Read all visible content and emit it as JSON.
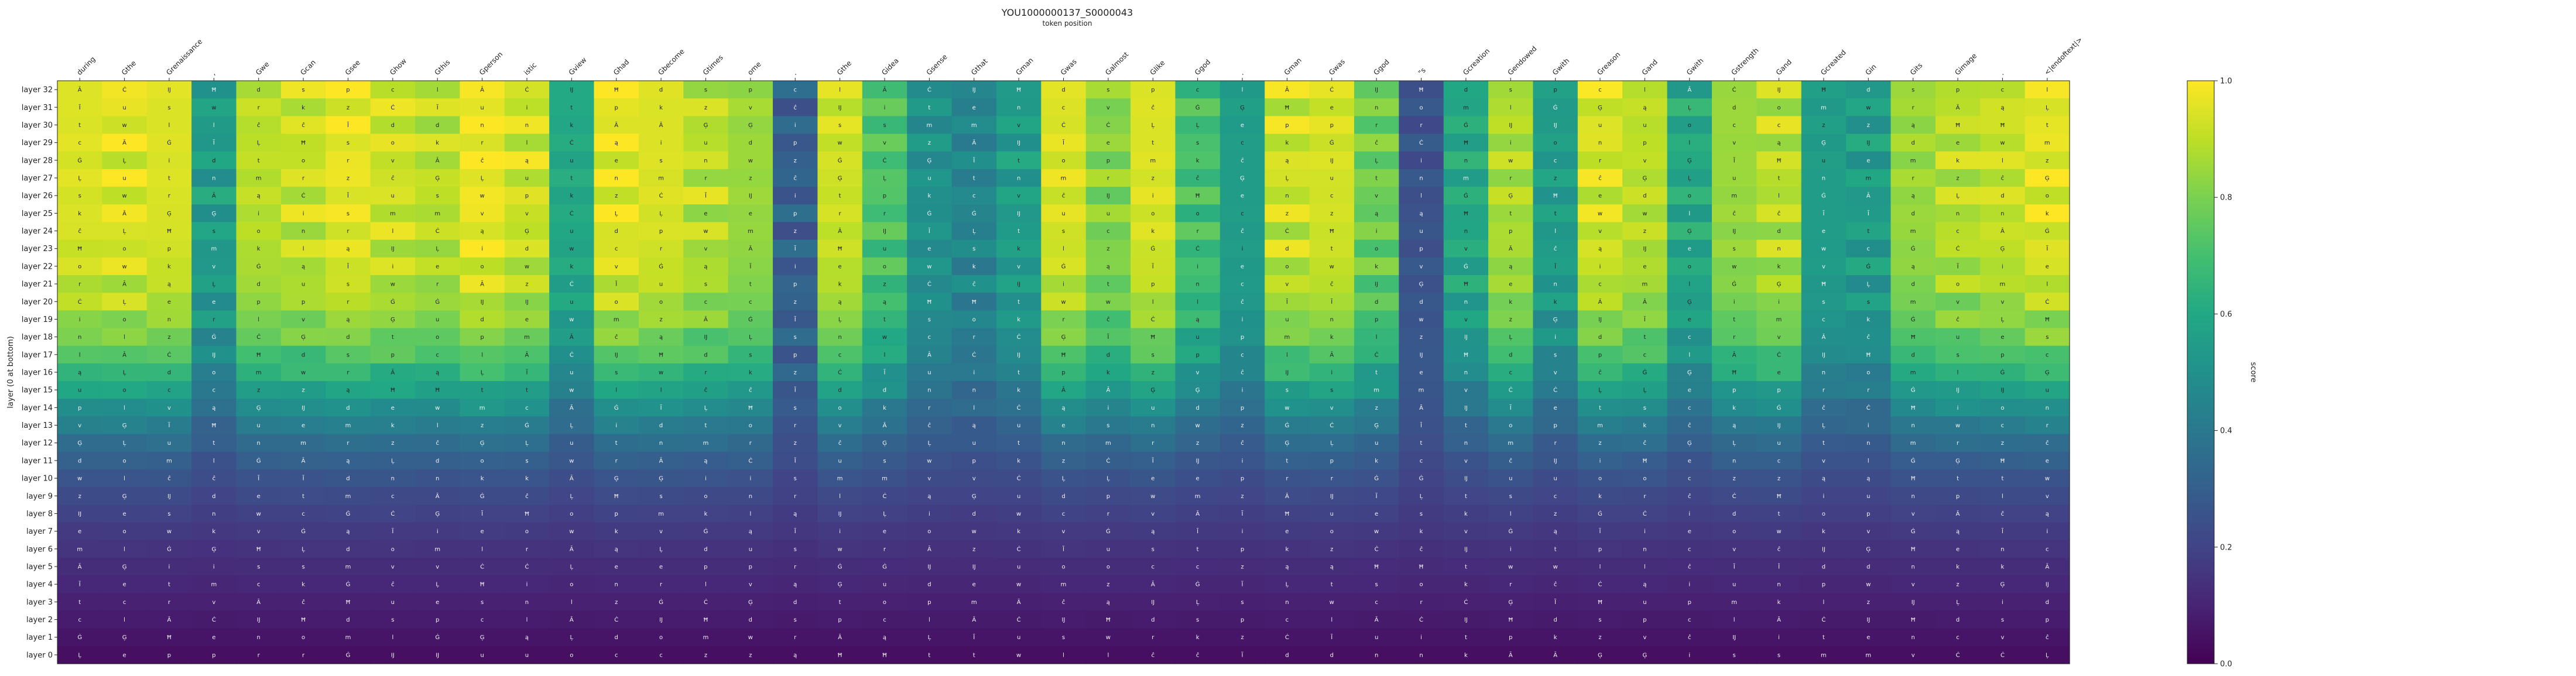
{
  "chart_data": {
    "type": "heatmap",
    "title": "YOU1000000137_S0000043",
    "subtitle": "token position",
    "ylabel": "layer (0 at bottom)",
    "colorbar_label": "score",
    "colorscale": "viridis",
    "value_range": [
      0.0,
      1.0
    ],
    "colorbar_ticks": [
      "0.0",
      "0.2",
      "0.4",
      "0.6",
      "0.8",
      "1.0"
    ],
    "x_tokens": [
      "during",
      "Gthe",
      "Grenaissance",
      ",",
      "Gwe",
      "Gcan",
      "Gsee",
      "Ghow",
      "Gthis",
      "Gperson",
      "istic",
      "Gview",
      "Ghad",
      "Gbecome",
      "Gtimes",
      "ome",
      ".",
      "Gthe",
      "Gidea",
      "Gsense",
      "Gthat",
      "Gman",
      "Gwas",
      "Galmost",
      "Glike",
      "Ggod",
      ".",
      "Gman",
      "Gwas",
      "Ggod",
      "\"s",
      "Gcreation",
      "Gendowed",
      "Gwith",
      "Greason",
      "Gand",
      "Gwith",
      "Gstrength",
      "Gand",
      "Gcreated",
      "Gin",
      "Gits",
      "Gimage",
      ".",
      "<|endoftext|>"
    ],
    "y_layers": [
      "layer 32",
      "layer 31",
      "layer 30",
      "layer 29",
      "layer 28",
      "layer 27",
      "layer 26",
      "layer 25",
      "layer 24",
      "layer 23",
      "layer 22",
      "layer 21",
      "layer 20",
      "layer 19",
      "layer 18",
      "layer 17",
      "layer 16",
      "layer 15",
      "layer 14",
      "layer 13",
      "layer 12",
      "layer 11",
      "layer 10",
      "layer 9",
      "layer 8",
      "layer 7",
      "layer 6",
      "layer 5",
      "layer 4",
      "layer 3",
      "layer 2",
      "layer 1",
      "layer 0"
    ],
    "col_peaks": [
      0.95,
      0.96,
      0.95,
      0.55,
      0.9,
      0.92,
      0.97,
      0.93,
      0.9,
      0.98,
      0.93,
      0.6,
      0.97,
      0.95,
      0.9,
      0.85,
      0.3,
      0.93,
      0.72,
      0.5,
      0.45,
      0.55,
      0.95,
      0.82,
      0.95,
      0.7,
      0.55,
      0.93,
      0.94,
      0.78,
      0.25,
      0.6,
      0.88,
      0.55,
      0.94,
      0.9,
      0.6,
      0.85,
      0.9,
      0.55,
      0.55,
      0.85,
      0.9,
      0.92,
      0.96
    ],
    "cell_tokens": [
      "Ā",
      "Ġ",
      "ĉ",
      "Ċ",
      "ą",
      "Ģ",
      "Ĳ",
      "Ĩ",
      "Ļ",
      "Ħ",
      "i",
      "u",
      "d",
      "e",
      "t",
      "s",
      "o",
      "n",
      "p",
      "w",
      "m",
      "c",
      "k",
      "r",
      "l",
      "v",
      "z"
    ]
  }
}
